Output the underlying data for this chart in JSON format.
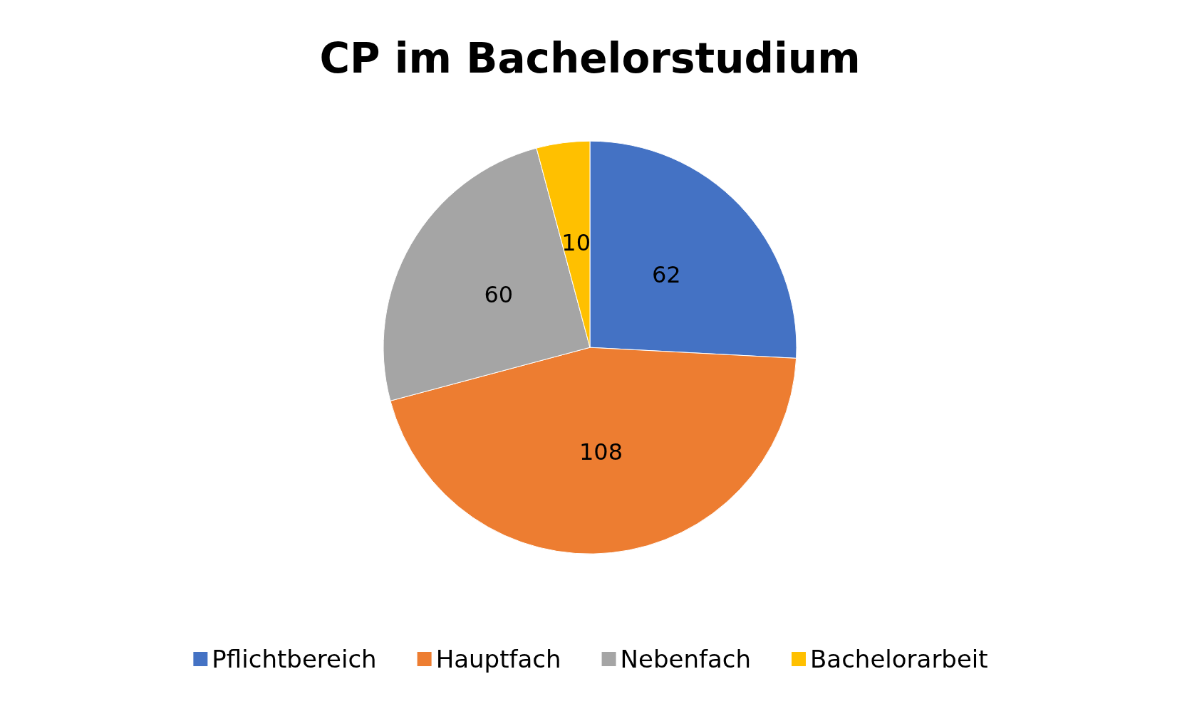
{
  "chart_data": {
    "type": "pie",
    "title": "CP im Bachelorstudium",
    "categories": [
      "Pflichtbereich",
      "Hauptfach",
      "Nebenfach",
      "Bachelorarbeit"
    ],
    "values": [
      62,
      108,
      60,
      10
    ],
    "colors": [
      "#4472c4",
      "#ed7d31",
      "#a5a5a5",
      "#ffc000"
    ],
    "data_labels": true,
    "legend": "bottom"
  }
}
